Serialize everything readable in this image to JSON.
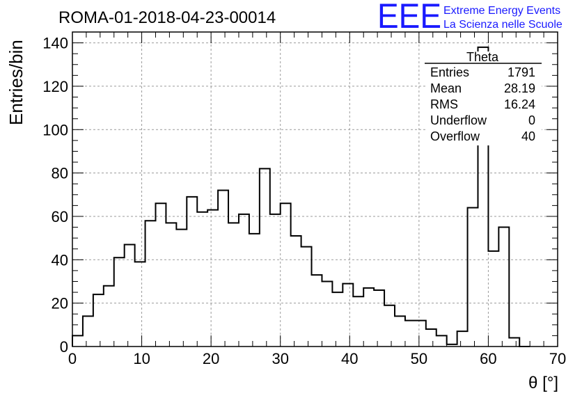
{
  "chart_data": {
    "type": "histogram",
    "title": "ROMA-01-2018-04-23-00014",
    "xlabel": "θ [°]",
    "ylabel": "Entries/bin",
    "xlim": [
      0,
      70
    ],
    "ylim": [
      0,
      145
    ],
    "xticks": [
      0,
      10,
      20,
      30,
      40,
      50,
      60,
      70
    ],
    "yticks": [
      0,
      20,
      40,
      60,
      80,
      100,
      120,
      140
    ],
    "grid": true,
    "bin_width": 1.5,
    "bin_start": 0,
    "series": [
      {
        "values": [
          5,
          14,
          24,
          28,
          41,
          47,
          39,
          58,
          66,
          57,
          54,
          69,
          62,
          63,
          72,
          57,
          61,
          52,
          82,
          61,
          66,
          51,
          46,
          33,
          30,
          25,
          29,
          23,
          27,
          26,
          19,
          14,
          12,
          12,
          8,
          5,
          1,
          7,
          64,
          138,
          44,
          55,
          4,
          0
        ]
      }
    ]
  },
  "stats_box": {
    "title": "Theta",
    "rows": [
      {
        "label": "Entries",
        "value": "1791"
      },
      {
        "label": "Mean",
        "value": "28.19"
      },
      {
        "label": "RMS",
        "value": "16.24"
      },
      {
        "label": "Underflow",
        "value": "0"
      },
      {
        "label": "Overflow",
        "value": "40"
      }
    ]
  },
  "logo": {
    "text": "EEE",
    "line1": "Extreme Energy Events",
    "line2": "La Scienza nelle Scuole",
    "color": "#1a1aff"
  }
}
